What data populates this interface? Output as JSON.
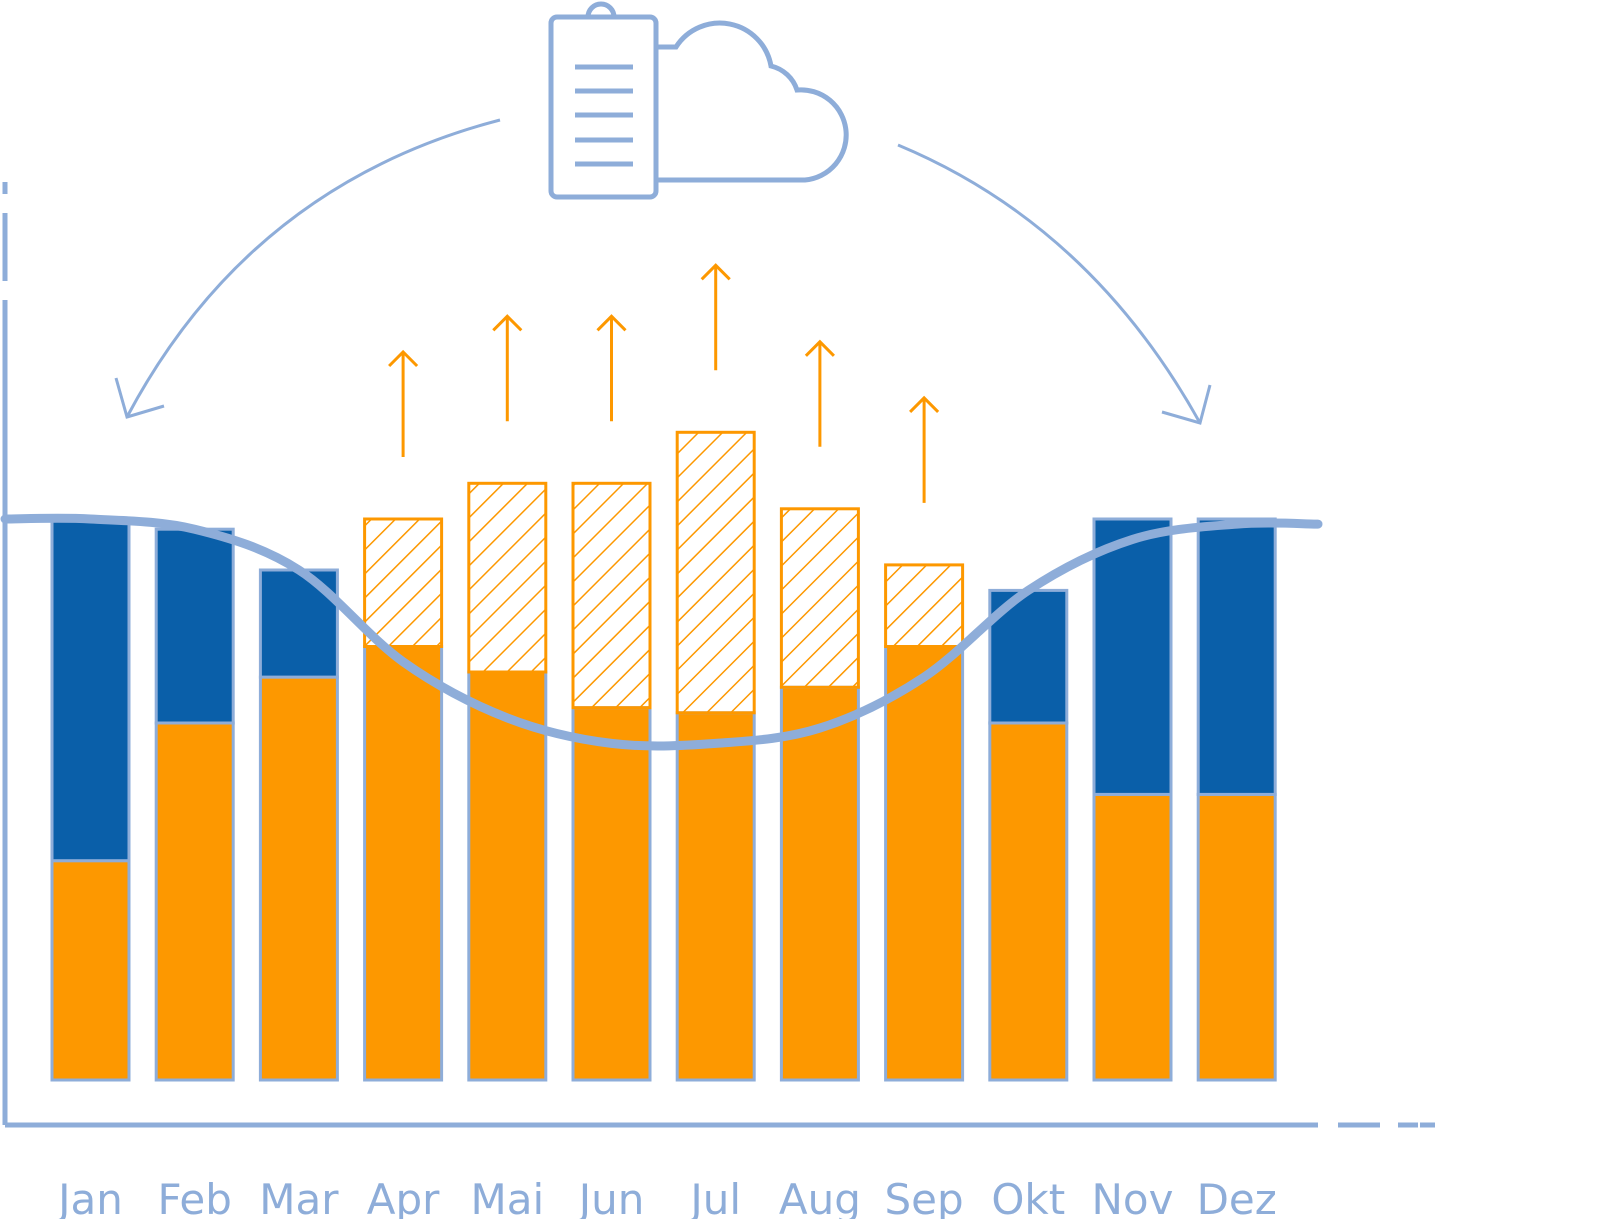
{
  "chart_data": {
    "type": "bar",
    "categories": [
      "Jan",
      "Feb",
      "Mar",
      "Apr",
      "Mai",
      "Jun",
      "Jul",
      "Aug",
      "Sep",
      "Okt",
      "Nov",
      "Dez"
    ],
    "series": [
      {
        "values": [
          4.3,
          7.0,
          7.9,
          8.5,
          8.0,
          7.3,
          7.2,
          7.7,
          8.5,
          7.0,
          5.6,
          5.6
        ]
      },
      {
        "values": [
          6.7,
          3.8,
          2.1,
          0,
          0,
          0,
          0,
          0,
          0,
          2.6,
          5.4,
          5.4
        ]
      },
      {
        "values": [
          0,
          0,
          0,
          2.5,
          3.7,
          4.4,
          5.5,
          3.5,
          1.6,
          0,
          0,
          0
        ]
      }
    ],
    "curve": [
      11.0,
      10.8,
      10.0,
      8.2,
      7.1,
      6.6,
      6.6,
      6.9,
      7.9,
      9.6,
      10.6,
      10.9
    ],
    "ylim": [
      0,
      12
    ],
    "upward_arrows": [
      "Apr",
      "Mai",
      "Jun",
      "Jul",
      "Aug",
      "Sep"
    ],
    "icons": [
      "clipboard-icon",
      "cloud-icon"
    ],
    "colors": {
      "orange": "#fd9800",
      "blue": "#0a5fa9",
      "light_blue": "#8eadd9",
      "hatch": "#fd9800"
    },
    "title": "",
    "xlabel": "",
    "ylabel": ""
  }
}
